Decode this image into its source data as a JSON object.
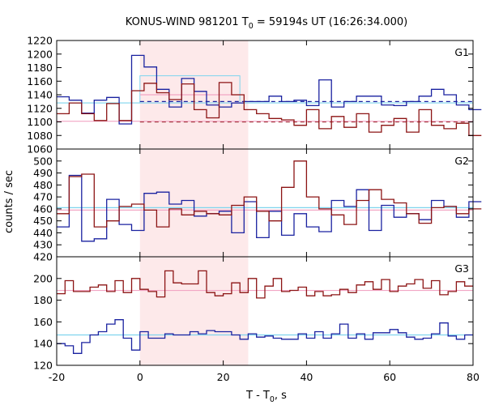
{
  "chart_data": {
    "type": "line",
    "title": {
      "prefix": "KONUS-WIND 981201 T",
      "sub": "0",
      "suffix": " = 59194s UT (16:26:34.000)"
    },
    "xlabel": {
      "prefix": "T - T",
      "sub": "0",
      "suffix": ", s"
    },
    "ylabel": "counts / sec",
    "xlim": [
      -20,
      80
    ],
    "xticks": [
      -20,
      0,
      20,
      40,
      60,
      80
    ],
    "shaded_interval": [
      0,
      26
    ],
    "colors": {
      "blue": "#1a22a0",
      "red": "#8c1414",
      "shade": "#fde9ea",
      "light_blue": "#7fd4ee",
      "pink": "#f2a6c4"
    },
    "panels": [
      {
        "label": "G1",
        "ylim": [
          1060,
          1220
        ],
        "yticks": [
          1060,
          1080,
          1100,
          1120,
          1140,
          1160,
          1180,
          1200,
          1220
        ],
        "bin_start": -20,
        "bin_width": 3,
        "series": [
          {
            "color": "blue",
            "values": [
              1137,
              1132,
              1113,
              1132,
              1136,
              1097,
              1198,
              1181,
              1148,
              1122,
              1164,
              1145,
              1125,
              1122,
              1128,
              1130,
              1130,
              1138,
              1130,
              1132,
              1124,
              1162,
              1122,
              1130,
              1138,
              1138,
              1125,
              1124,
              1130,
              1138,
              1148,
              1140,
              1125,
              1118
            ]
          },
          {
            "color": "red",
            "values": [
              1112,
              1128,
              1112,
              1102,
              1127,
              1102,
              1146,
              1157,
              1143,
              1133,
              1156,
              1118,
              1106,
              1158,
              1140,
              1118,
              1112,
              1105,
              1103,
              1095,
              1118,
              1090,
              1108,
              1092,
              1112,
              1085,
              1095,
              1105,
              1085,
              1118,
              1095,
              1090,
              1098,
              1080
            ]
          }
        ],
        "boxes": [
          {
            "color": "light_blue",
            "x0": 0,
            "x1": 24,
            "y0": 1128,
            "y1": 1168
          }
        ],
        "hlines": [
          {
            "color": "blue",
            "y": 1130,
            "x0": 0,
            "x1": 80,
            "dash": true
          },
          {
            "color": "red",
            "y": 1100,
            "x0": 0,
            "x1": 80,
            "dash": true
          },
          {
            "color": "light_blue",
            "y": 1128,
            "x0": -20,
            "x1": 80
          },
          {
            "color": "pink",
            "y": 1101,
            "x0": -20,
            "x1": 80
          },
          {
            "color": "pink",
            "y": 1140,
            "x0": 0,
            "x1": 24
          }
        ]
      },
      {
        "label": "G2",
        "ylim": [
          420,
          510
        ],
        "yticks": [
          420,
          430,
          440,
          450,
          460,
          470,
          480,
          490,
          500
        ],
        "bin_start": -20,
        "bin_width": 3,
        "series": [
          {
            "color": "blue",
            "values": [
              445,
              488,
              433,
              435,
              468,
              447,
              442,
              473,
              474,
              464,
              467,
              454,
              456,
              458,
              440,
              466,
              436,
              458,
              438,
              456,
              445,
              441,
              467,
              462,
              476,
              442,
              463,
              453,
              456,
              451,
              467,
              462,
              453,
              466
            ]
          },
          {
            "color": "red",
            "values": [
              456,
              487,
              489,
              445,
              450,
              462,
              464,
              459,
              445,
              460,
              455,
              458,
              456,
              455,
              463,
              470,
              458,
              450,
              478,
              500,
              470,
              460,
              455,
              447,
              467,
              476,
              468,
              465,
              456,
              448,
              461,
              462,
              456,
              460
            ]
          }
        ],
        "hlines": [
          {
            "color": "light_blue",
            "y": 461,
            "x0": -20,
            "x1": 80
          },
          {
            "color": "pink",
            "y": 459,
            "x0": -20,
            "x1": 80
          }
        ]
      },
      {
        "label": "G3",
        "ylim": [
          120,
          220
        ],
        "yticks": [
          120,
          140,
          160,
          180,
          200
        ],
        "bin_start": -20,
        "bin_width": 2,
        "series": [
          {
            "color": "blue",
            "values": [
              140,
              138,
              131,
              141,
              148,
              151,
              158,
              162,
              145,
              134,
              151,
              145,
              145,
              149,
              148,
              148,
              151,
              149,
              152,
              151,
              151,
              148,
              144,
              149,
              146,
              147,
              145,
              144,
              144,
              149,
              145,
              151,
              145,
              149,
              158,
              145,
              149,
              144,
              150,
              150,
              153,
              150,
              146,
              144,
              145,
              149,
              159,
              147,
              144,
              148
            ]
          },
          {
            "color": "red",
            "values": [
              186,
              198,
              188,
              188,
              192,
              194,
              188,
              198,
              187,
              200,
              190,
              188,
              183,
              207,
              196,
              195,
              195,
              207,
              187,
              184,
              186,
              196,
              187,
              200,
              182,
              193,
              200,
              188,
              189,
              192,
              184,
              188,
              184,
              185,
              190,
              187,
              194,
              197,
              190,
              199,
              188,
              193,
              195,
              199,
              191,
              198,
              185,
              188,
              197,
              193
            ]
          }
        ],
        "hlines": [
          {
            "color": "light_blue",
            "y": 148,
            "x0": -20,
            "x1": 80
          },
          {
            "color": "pink",
            "y": 189,
            "x0": -20,
            "x1": 80
          }
        ]
      }
    ]
  }
}
